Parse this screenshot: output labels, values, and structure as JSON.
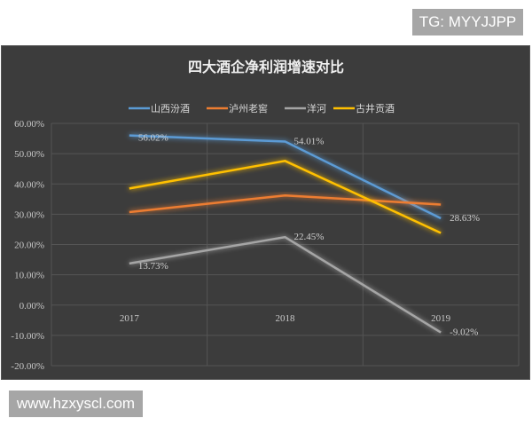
{
  "watermark_top": "TG: MYYJJPP",
  "watermark_bottom": "www.hzxyscl.com",
  "chart_data": {
    "type": "line",
    "title": "四大酒企净利润增速对比",
    "categories": [
      "2017",
      "2018",
      "2019"
    ],
    "ylim": [
      -20,
      60
    ],
    "yticks": [
      "60.00%",
      "50.00%",
      "40.00%",
      "30.00%",
      "20.00%",
      "10.00%",
      "0.00%",
      "-10.00%",
      "-20.00%"
    ],
    "grid": true,
    "legend_position": "top",
    "series": [
      {
        "name": "山西汾酒",
        "color": "#5b9bd5",
        "values": [
          56.02,
          54.01,
          28.63
        ],
        "labels": [
          "56.02%",
          "54.01%",
          "28.63%"
        ]
      },
      {
        "name": "泸州老窖",
        "color": "#ed7d31",
        "values": [
          30.7,
          36.2,
          33.2
        ],
        "labels": [
          "",
          "",
          ""
        ]
      },
      {
        "name": "洋河",
        "color": "#a5a5a5",
        "values": [
          13.73,
          22.45,
          -9.02
        ],
        "labels": [
          "13.73%",
          "22.45%",
          "-9.02%"
        ]
      },
      {
        "name": "古井贡酒",
        "color": "#ffc000",
        "values": [
          38.5,
          47.6,
          23.8
        ],
        "labels": [
          "",
          "",
          ""
        ]
      }
    ]
  }
}
